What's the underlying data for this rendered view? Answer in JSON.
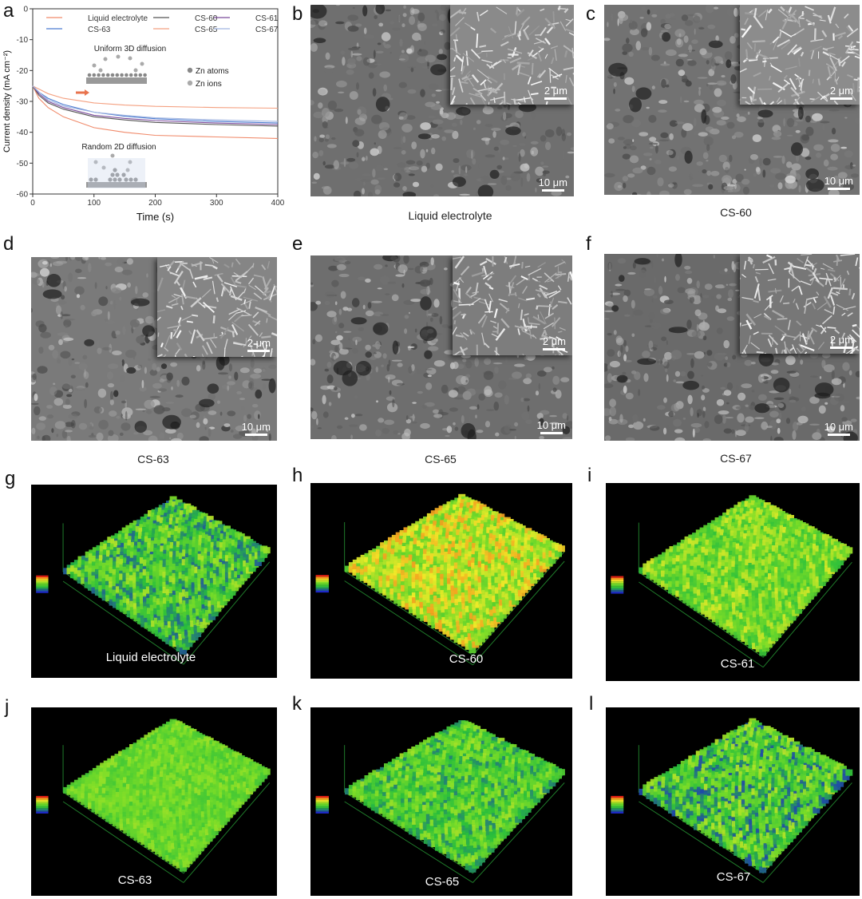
{
  "panel_letters": [
    "a",
    "b",
    "c",
    "d",
    "e",
    "f",
    "g",
    "h",
    "i",
    "j",
    "k",
    "l"
  ],
  "sem_panels": [
    {
      "id": "b",
      "caption": "Liquid electrolyte",
      "inset_scale": "2 μm",
      "main_scale": "10 μm"
    },
    {
      "id": "c",
      "caption": "CS-60",
      "inset_scale": "2 μm",
      "main_scale": "10 μm"
    },
    {
      "id": "d",
      "caption": "CS-63",
      "inset_scale": "2 μm",
      "main_scale": "10 μm"
    },
    {
      "id": "e",
      "caption": "CS-65",
      "inset_scale": "2 μm",
      "main_scale": "10 μm"
    },
    {
      "id": "f",
      "caption": "CS-67",
      "inset_scale": "2 μm",
      "main_scale": "10 μm"
    }
  ],
  "topo_panels": [
    {
      "id": "g",
      "label": "Liquid electrolyte"
    },
    {
      "id": "h",
      "label": "CS-60"
    },
    {
      "id": "i",
      "label": "CS-61"
    },
    {
      "id": "j",
      "label": "CS-63"
    },
    {
      "id": "k",
      "label": "CS-65"
    },
    {
      "id": "l",
      "label": "CS-67"
    }
  ],
  "chart_annotations": {
    "uniform": "Uniform 3D diffusion",
    "random": "Random 2D diffusion",
    "zn_atoms": "Zn atoms",
    "zn_ions": "Zn ions"
  },
  "chart_data": {
    "type": "line",
    "xlabel": "Time (s)",
    "ylabel": "Current density (mA cm⁻²)",
    "xlim": [
      0,
      400
    ],
    "ylim": [
      -60,
      0
    ],
    "xticks": [
      0,
      100,
      200,
      300,
      400
    ],
    "yticks": [
      0,
      -10,
      -20,
      -30,
      -40,
      -50,
      -60
    ],
    "legend": "top",
    "series": [
      {
        "name": "Liquid electrolyte",
        "color": "#f08a6a",
        "x": [
          0,
          10,
          25,
          50,
          100,
          150,
          200,
          300,
          400
        ],
        "y": [
          -25,
          -29,
          -32,
          -35,
          -38.5,
          -40,
          -41,
          -41.5,
          -42
        ]
      },
      {
        "name": "CS-60",
        "color": "#555555",
        "x": [
          0,
          10,
          25,
          50,
          100,
          150,
          200,
          300,
          400
        ],
        "y": [
          -25,
          -28,
          -30.5,
          -32.5,
          -35,
          -36,
          -36.8,
          -37.5,
          -38
        ]
      },
      {
        "name": "CS-61",
        "color": "#7b4b9b",
        "x": [
          0,
          10,
          25,
          50,
          100,
          150,
          200,
          300,
          400
        ],
        "y": [
          -25,
          -27.5,
          -30,
          -32,
          -34.5,
          -35.5,
          -36.2,
          -37,
          -37.5
        ]
      },
      {
        "name": "CS-63",
        "color": "#4a7bd0",
        "x": [
          0,
          10,
          25,
          50,
          100,
          150,
          200,
          300,
          400
        ],
        "y": [
          -25,
          -27,
          -29,
          -31,
          -33.5,
          -34.8,
          -35.6,
          -36.5,
          -37
        ]
      },
      {
        "name": "CS-65",
        "color": "#f4a080",
        "x": [
          0,
          10,
          25,
          50,
          100,
          150,
          200,
          300,
          400
        ],
        "y": [
          -25,
          -26,
          -27.5,
          -29,
          -30.5,
          -31.2,
          -31.6,
          -32,
          -32.2
        ]
      },
      {
        "name": "CS-67",
        "color": "#a0b4e0",
        "x": [
          0,
          10,
          25,
          50,
          100,
          150,
          200,
          300,
          400
        ],
        "y": [
          -25,
          -27,
          -29.5,
          -31.5,
          -33.5,
          -34.5,
          -35.3,
          -36,
          -36.5
        ]
      }
    ]
  },
  "colors": {
    "axis": "#333333",
    "topo_bg": "#000000",
    "sem_gray": "#6a6a6a"
  }
}
